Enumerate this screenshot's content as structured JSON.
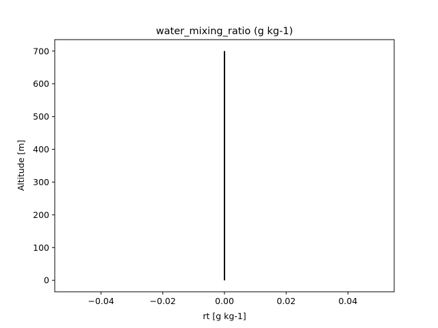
{
  "chart_data": {
    "type": "line",
    "title": "water_mixing_ratio (g kg-1)",
    "xlabel": "rt [g kg-1]",
    "ylabel": "Altitude [m]",
    "xlim": [
      -0.055,
      0.055
    ],
    "ylim": [
      -35,
      735
    ],
    "x_ticks": [
      -0.04,
      -0.02,
      0.0,
      0.02,
      0.04
    ],
    "x_tick_labels": [
      "−0.04",
      "−0.02",
      "0.00",
      "0.02",
      "0.04"
    ],
    "y_ticks": [
      0,
      100,
      200,
      300,
      400,
      500,
      600,
      700
    ],
    "y_tick_labels": [
      "0",
      "100",
      "200",
      "300",
      "400",
      "500",
      "600",
      "700"
    ],
    "grid": false,
    "series": [
      {
        "color": "#000000",
        "x": [
          0,
          0,
          0,
          0,
          0,
          0,
          0,
          0
        ],
        "y": [
          0,
          100,
          200,
          300,
          400,
          500,
          600,
          700
        ]
      }
    ]
  }
}
